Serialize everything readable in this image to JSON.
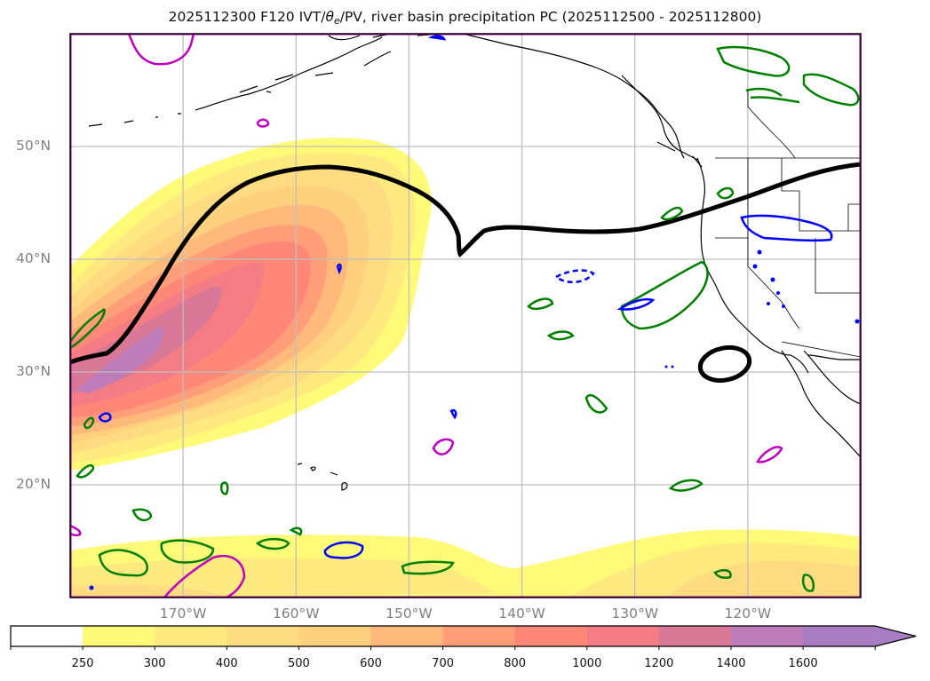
{
  "title": {
    "prefix": "2025112300 F120 IVT/",
    "theta": "θ",
    "theta_sub": "e",
    "suffix": "/PV, river basin precipitation PC (2025112500 - 2025112800)"
  },
  "map": {
    "extent_lon": [
      -180,
      -110
    ],
    "extent_lat": [
      10,
      60
    ],
    "lat_ticks": [
      {
        "value": 50,
        "label": "50°N"
      },
      {
        "value": 40,
        "label": "40°N"
      },
      {
        "value": 30,
        "label": "30°N"
      },
      {
        "value": 20,
        "label": "20°N"
      }
    ],
    "lon_ticks": [
      {
        "value": -170,
        "label": "170°W"
      },
      {
        "value": -160,
        "label": "160°W"
      },
      {
        "value": -150,
        "label": "150°W"
      },
      {
        "value": -140,
        "label": "140°W"
      },
      {
        "value": -130,
        "label": "130°W"
      },
      {
        "value": -120,
        "label": "120°W"
      }
    ],
    "gridline_color": "#bfbfbf",
    "frame_color": "#800080"
  },
  "colorbar": {
    "extend": "max",
    "levels": [
      250,
      300,
      400,
      500,
      600,
      700,
      800,
      1000,
      1200,
      1400,
      1600
    ],
    "labels": [
      "250",
      "300",
      "400",
      "500",
      "600",
      "700",
      "800",
      "1000",
      "1200",
      "1400",
      "1600"
    ],
    "colors": [
      "#ffffff",
      "#fffa78",
      "#ffea7f",
      "#ffdc82",
      "#ffd17f",
      "#ffb97a",
      "#ff9e78",
      "#ff8778",
      "#f47d85",
      "#d87796",
      "#be7cba",
      "#a87dc4"
    ]
  },
  "chart_data": {
    "type": "heatmap",
    "title": "2025112300 F120 IVT/θe/PV, river basin precipitation PC (2025112500 - 2025112800)",
    "variable": "IVT",
    "colorbar_levels": [
      250,
      300,
      400,
      500,
      600,
      700,
      800,
      1000,
      1200,
      1400,
      1600
    ],
    "features": [
      {
        "name": "atmospheric river plume",
        "axis_from": [
          -180,
          28
        ],
        "axis_to": [
          -158,
          42
        ],
        "peak_value": ">1600",
        "peak_location": [
          -176,
          31
        ]
      },
      {
        "name": "southern IVT band",
        "lat_range": [
          10,
          15
        ],
        "lon_range": [
          -180,
          -110
        ],
        "max_value": "400-500"
      }
    ],
    "contours": {
      "theta_e_thick_black": "front line from (-180,31) arcing to (-157,48) dipping to (-146,40.5) then east to (-110,48.5); closed loop near (-122,31)",
      "green": "precipitation contours (positive PC)",
      "blue": "precipitation contours (dashed = negative)",
      "magenta": "PV contours"
    },
    "xlabel": "",
    "ylabel": ""
  }
}
